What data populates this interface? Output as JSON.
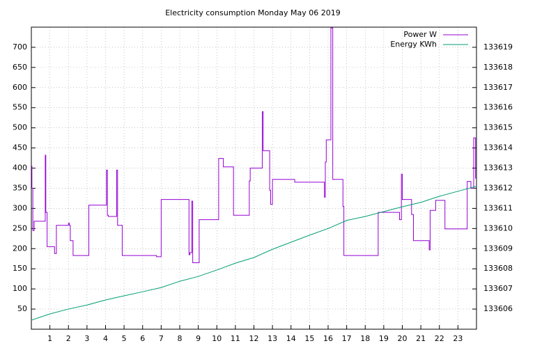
{
  "chart_data": {
    "type": "line",
    "title": "Electricity consumption Monday May 06 2019",
    "xlim": [
      0,
      24
    ],
    "xticks": [
      1,
      2,
      3,
      4,
      5,
      6,
      7,
      8,
      9,
      10,
      11,
      12,
      13,
      14,
      15,
      16,
      17,
      18,
      19,
      20,
      21,
      22,
      23
    ],
    "ylim": [
      0,
      750
    ],
    "yticks": [
      50,
      100,
      150,
      200,
      250,
      300,
      350,
      400,
      450,
      500,
      550,
      600,
      650,
      700
    ],
    "y2lim": [
      133605,
      133620
    ],
    "y2ticks": [
      133606,
      133607,
      133608,
      133609,
      133610,
      133611,
      133612,
      133613,
      133614,
      133615,
      133616,
      133617,
      133618,
      133619
    ],
    "grid": true,
    "legend": "top-right",
    "series": [
      {
        "name": "Power W",
        "color": "#9400d3",
        "steps": true,
        "x": [
          0,
          0.03,
          0.08,
          0.15,
          0.75,
          0.78,
          0.85,
          1.25,
          1.35,
          2.0,
          2.05,
          2.1,
          2.25,
          3.1,
          4.05,
          4.1,
          4.15,
          4.6,
          4.65,
          4.9,
          6.75,
          7.0,
          8.5,
          8.55,
          8.65,
          8.7,
          9.05,
          10.1,
          10.35,
          10.9,
          11.75,
          11.8,
          12.45,
          12.5,
          12.85,
          12.9,
          13.0,
          14.2,
          15.8,
          15.85,
          15.9,
          16.15,
          16.25,
          16.8,
          16.85,
          18.7,
          19.85,
          19.95,
          20.0,
          20.5,
          20.6,
          21.45,
          21.5,
          21.8,
          22.3,
          23.5,
          23.7,
          23.85,
          23.95
        ],
        "values": [
          405,
          350,
          245,
          268,
          432,
          290,
          205,
          188,
          258,
          263,
          258,
          220,
          183,
          308,
          395,
          283,
          280,
          395,
          258,
          183,
          180,
          322,
          185,
          190,
          318,
          165,
          272,
          424,
          403,
          283,
          368,
          400,
          540,
          443,
          345,
          310,
          372,
          365,
          328,
          415,
          470,
          748,
          372,
          305,
          183,
          290,
          272,
          385,
          322,
          285,
          220,
          197,
          295,
          320,
          249,
          367,
          350,
          475,
          375
        ]
      },
      {
        "name": "Energy KWh",
        "color": "#009e73",
        "axis": "y2",
        "x": [
          0,
          1,
          2,
          3,
          4,
          5,
          6,
          7,
          8,
          9,
          10,
          11,
          12,
          13,
          14,
          15,
          16,
          17,
          18,
          19,
          20,
          21,
          22,
          23,
          24
        ],
        "values": [
          133605.45,
          133605.76,
          133606.0,
          133606.2,
          133606.45,
          133606.66,
          133606.86,
          133607.07,
          133607.38,
          133607.62,
          133607.94,
          133608.28,
          133608.56,
          133608.97,
          133609.32,
          133609.67,
          133610.0,
          133610.4,
          133610.6,
          133610.84,
          133611.08,
          133611.3,
          133611.6,
          133611.85,
          133612.1
        ]
      }
    ]
  }
}
